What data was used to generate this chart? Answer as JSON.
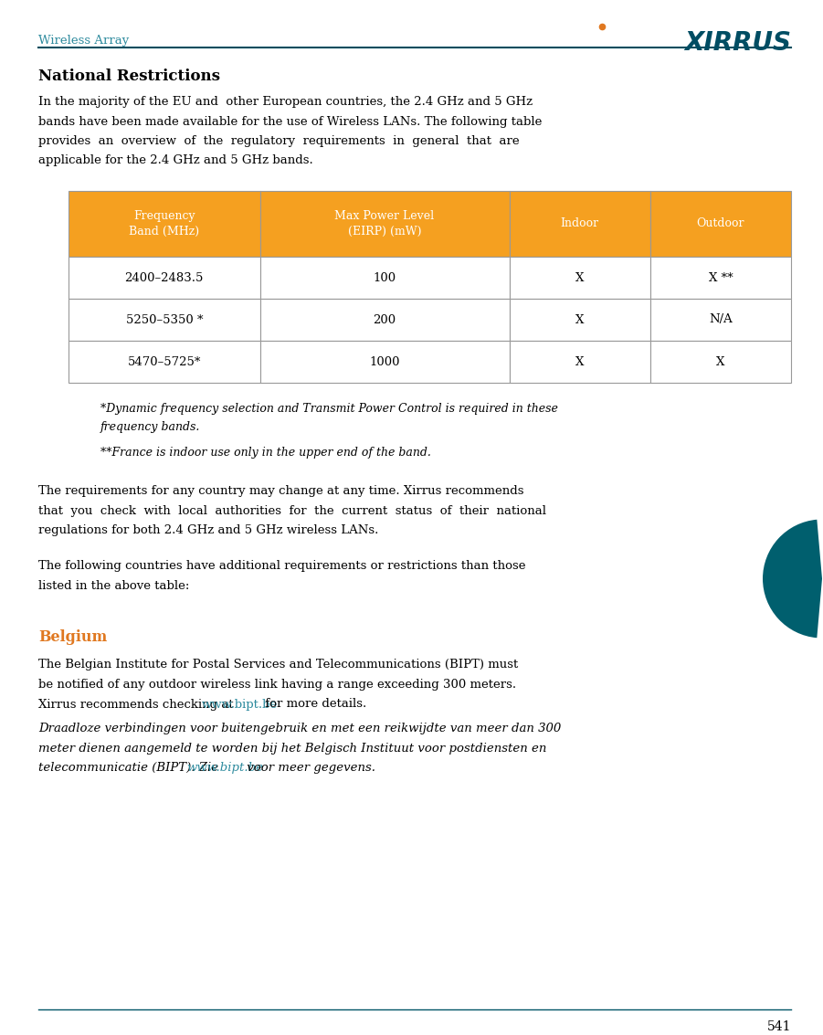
{
  "page_width": 9.01,
  "page_height": 11.33,
  "dpi": 100,
  "bg_color": "#ffffff",
  "header_text": "Wireless Array",
  "header_color": "#2e8b9e",
  "header_line_color": "#004d5e",
  "logo_main_color": "#004d63",
  "logo_dot_color": "#e07820",
  "title_text": "National Restrictions",
  "body_color": "#000000",
  "table_header_bg": "#f5a020",
  "table_header_fg": "#ffffff",
  "table_border_color": "#999999",
  "table_headers": [
    "Frequency\nBand (MHz)",
    "Max Power Level\n(EIRP) (mW)",
    "Indoor",
    "Outdoor"
  ],
  "table_rows": [
    [
      "2400–2483.5",
      "100",
      "X",
      "X **"
    ],
    [
      "5250–5350 *",
      "200",
      "X",
      "N/A"
    ],
    [
      "5470–5725*",
      "1000",
      "X",
      "X"
    ]
  ],
  "footnote1_line1": "*Dynamic frequency selection and Transmit Power Control is required in these",
  "footnote1_line2": "frequency bands.",
  "footnote2": "**France is indoor use only in the upper end of the band.",
  "para1_lines": [
    "The requirements for any country may change at any time. Xirrus recommends",
    "that  you  check  with  local  authorities  for  the  current  status  of  their  national",
    "regulations for both 2.4 GHz and 5 GHz wireless LANs."
  ],
  "para2_lines": [
    "The following countries have additional requirements or restrictions than those",
    "listed in the above table:"
  ],
  "belgium_heading": "Belgium",
  "belgium_heading_color": "#e07820",
  "belgium_p1_lines": [
    "The Belgian Institute for Postal Services and Telecommunications (BIPT) must",
    "be notified of any outdoor wireless link having a range exceeding 300 meters.",
    "Xirrus recommends checking at "
  ],
  "belgium_link": "www.bipt.be",
  "belgium_link_color": "#2e8b9e",
  "belgium_p1_end": " for more details.",
  "belgium_p2_lines": [
    "Draadloze verbindingen voor buitengebruik en met een reikwijdte van meer dan 300",
    "meter dienen aangemeld te worden bij het Belgisch Instituut voor postdiensten en",
    "telecommunicatie (BIPT). Zie "
  ],
  "belgium_link2": "www.bipt.be",
  "belgium_p2_end": " voor meer gegevens.",
  "footer_line_color": "#005566",
  "page_number": "541",
  "intro_lines": [
    "In the majority of the EU and  other European countries, the 2.4 GHz and 5 GHz",
    "bands have been made available for the use of Wireless LANs. The following table",
    "provides  an  overview  of  the  regulatory  requirements  in  general  that  are",
    "applicable for the 2.4 GHz and 5 GHz bands."
  ],
  "circle_color": "#005f6e"
}
